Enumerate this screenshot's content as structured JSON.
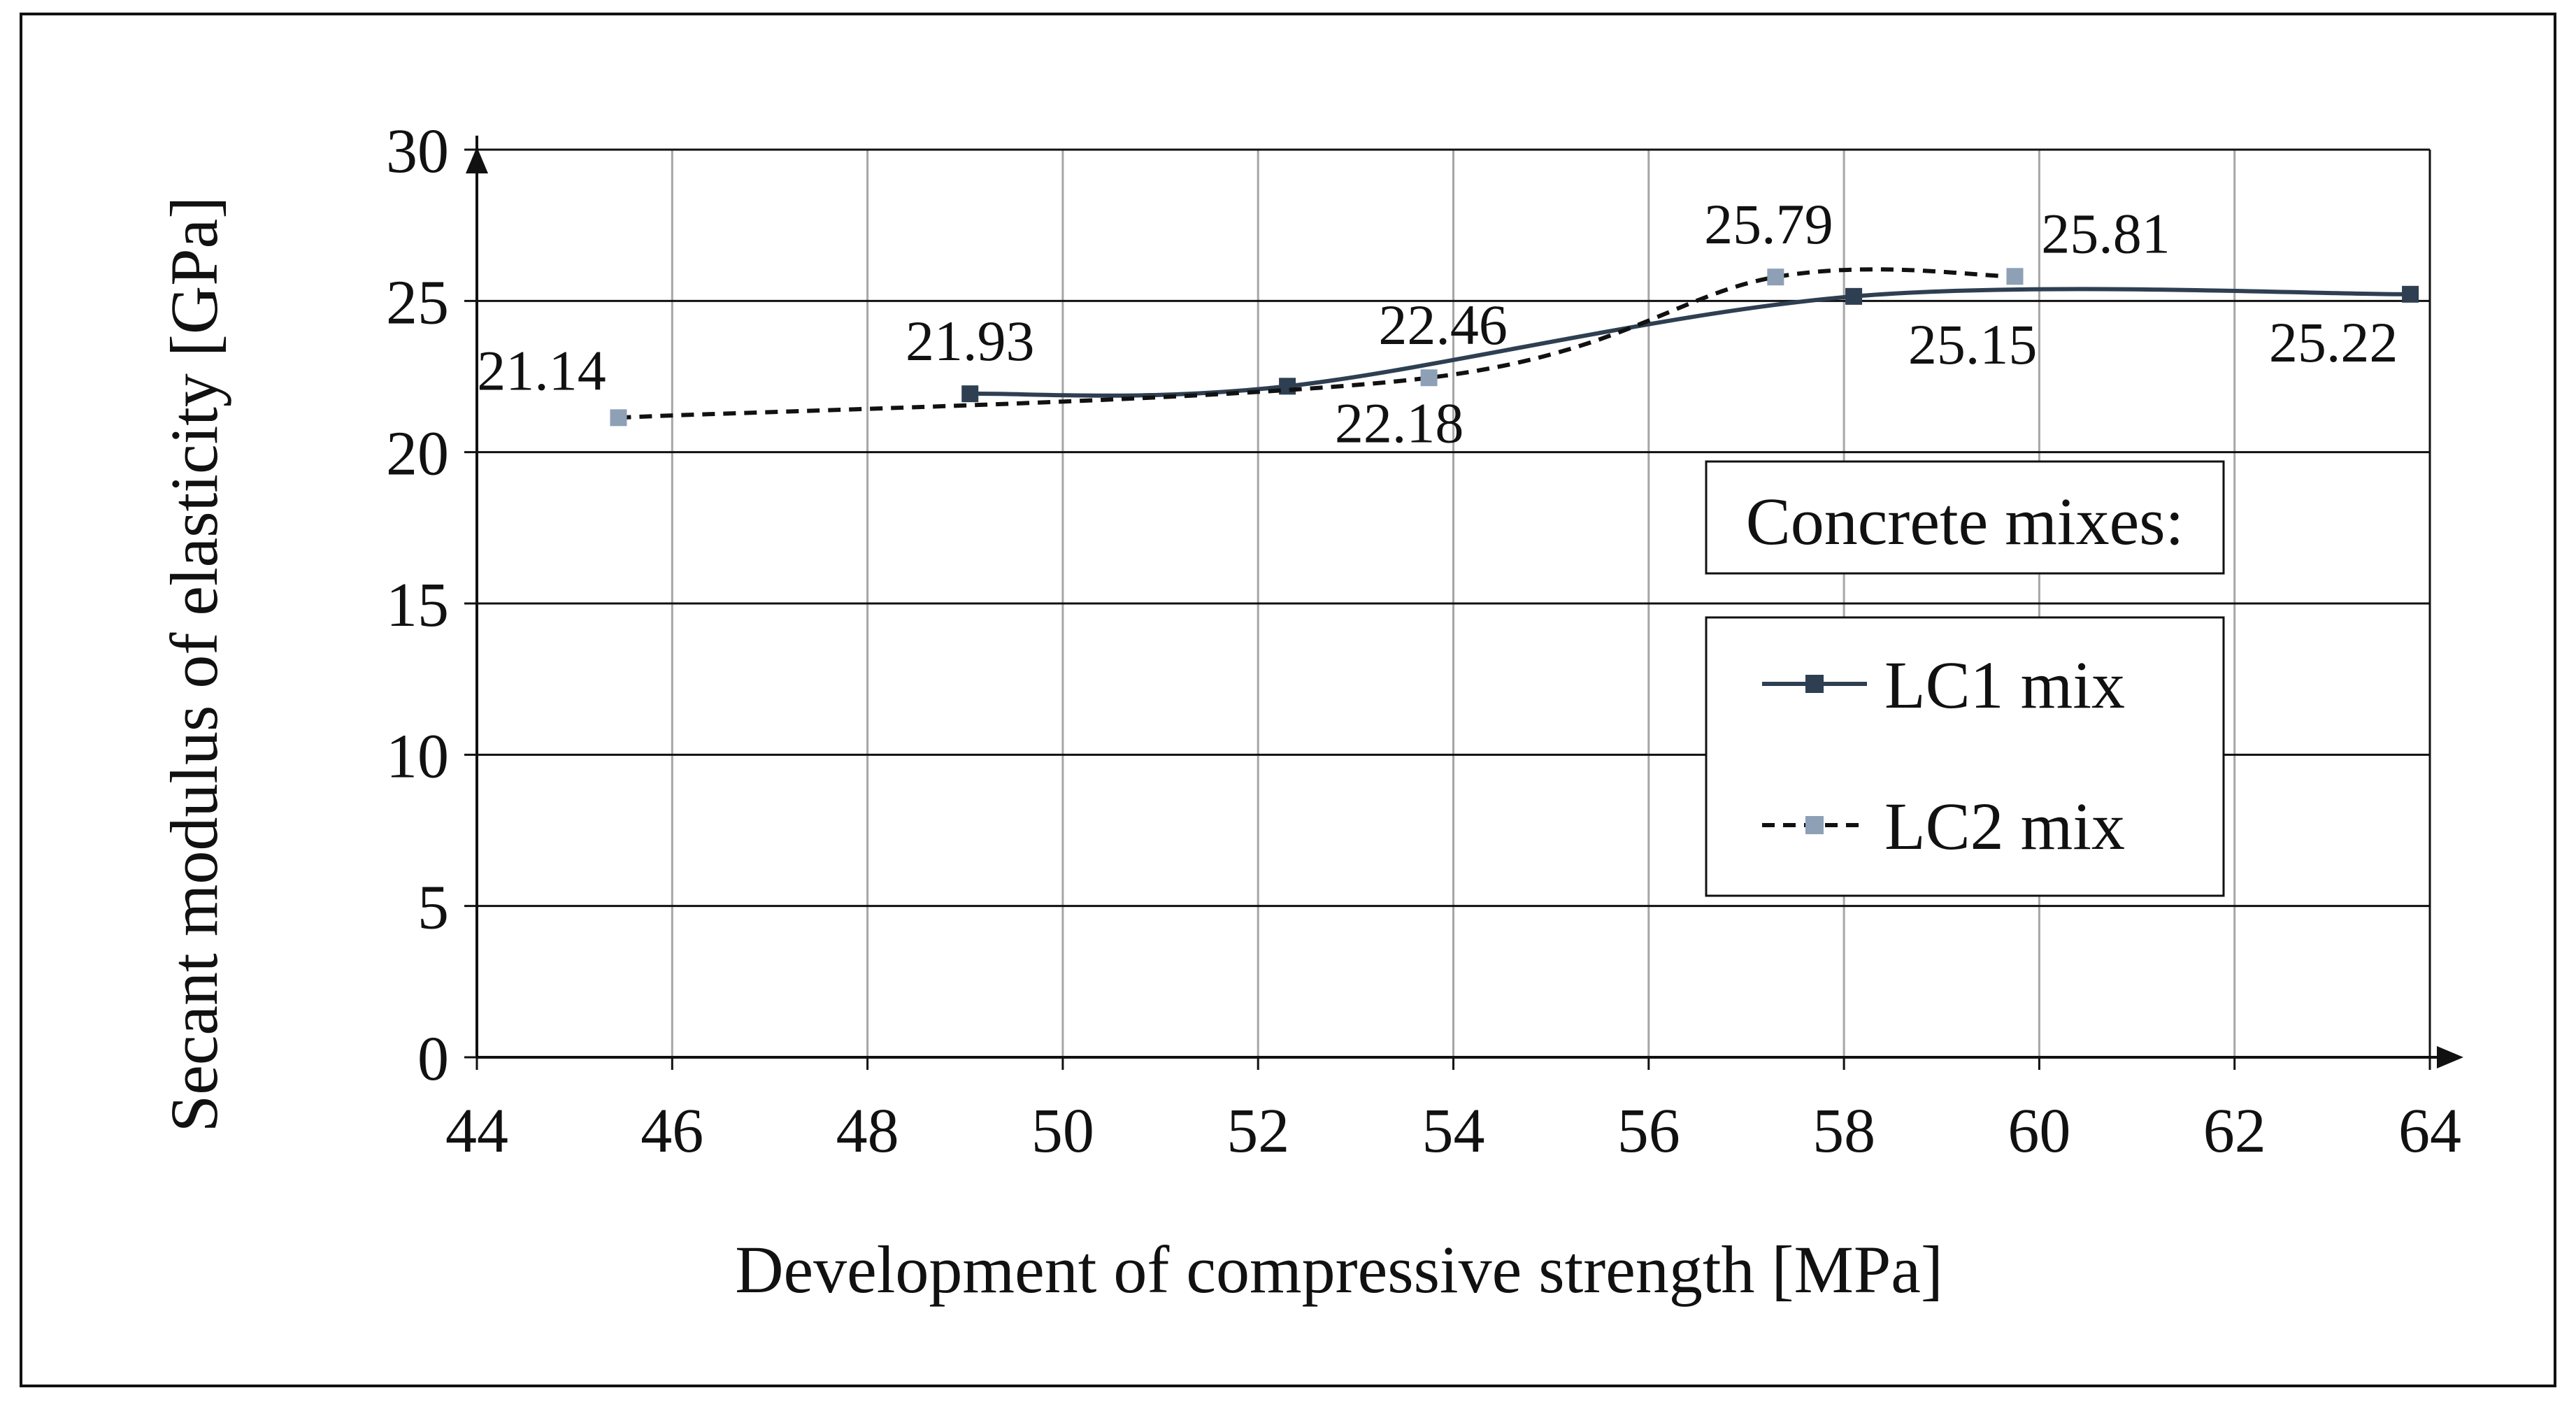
{
  "chart_data": {
    "type": "line",
    "title": "",
    "xlabel": "Development of compressive strength [MPa]",
    "ylabel": "Secant modulus of elasticity [GPa]",
    "xlim": [
      44,
      64
    ],
    "ylim": [
      0,
      30
    ],
    "xticks": [
      "44",
      "46",
      "48",
      "50",
      "52",
      "54",
      "56",
      "58",
      "60",
      "62",
      "64"
    ],
    "yticks": [
      "0",
      "5",
      "10",
      "15",
      "20",
      "25",
      "30"
    ],
    "grid": true,
    "legend": {
      "title": "Concrete mixes:",
      "placement": "right",
      "entries": [
        "LC1 mix",
        "LC2 mix"
      ]
    },
    "series": [
      {
        "name": "LC1 mix",
        "line_style": "solid",
        "color": "#2e3f52",
        "marker_color": "#2e3f52",
        "points": [
          {
            "x": 49.05,
            "y": 21.93,
            "label": "21.93"
          },
          {
            "x": 52.3,
            "y": 22.18,
            "label": "22.18"
          },
          {
            "x": 58.1,
            "y": 25.15,
            "label": "25.15"
          },
          {
            "x": 63.8,
            "y": 25.22,
            "label": "25.22"
          }
        ]
      },
      {
        "name": "LC2 mix",
        "line_style": "dashed",
        "color": "#111111",
        "marker_color": "#8ea0b5",
        "points": [
          {
            "x": 45.45,
            "y": 21.14,
            "label": "21.14"
          },
          {
            "x": 53.75,
            "y": 22.46,
            "label": "22.46"
          },
          {
            "x": 57.3,
            "y": 25.79,
            "label": "25.79"
          },
          {
            "x": 59.75,
            "y": 25.81,
            "label": "25.81"
          }
        ]
      }
    ]
  }
}
